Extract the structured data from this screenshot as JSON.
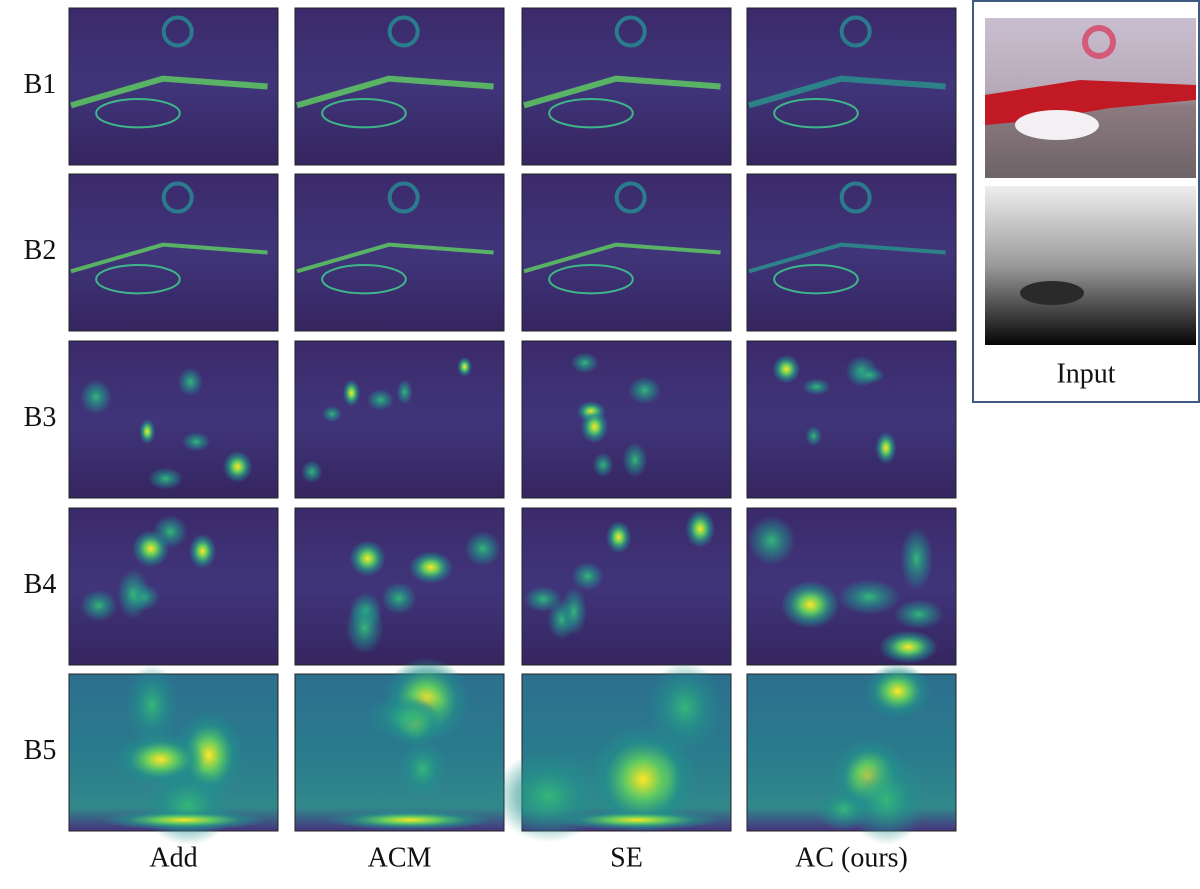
{
  "row_labels": [
    "B1",
    "B2",
    "B3",
    "B4",
    "B5"
  ],
  "column_labels": [
    "Add",
    "ACM",
    "SE",
    "AC (ours)"
  ],
  "input_panel": {
    "label": "Input"
  }
}
